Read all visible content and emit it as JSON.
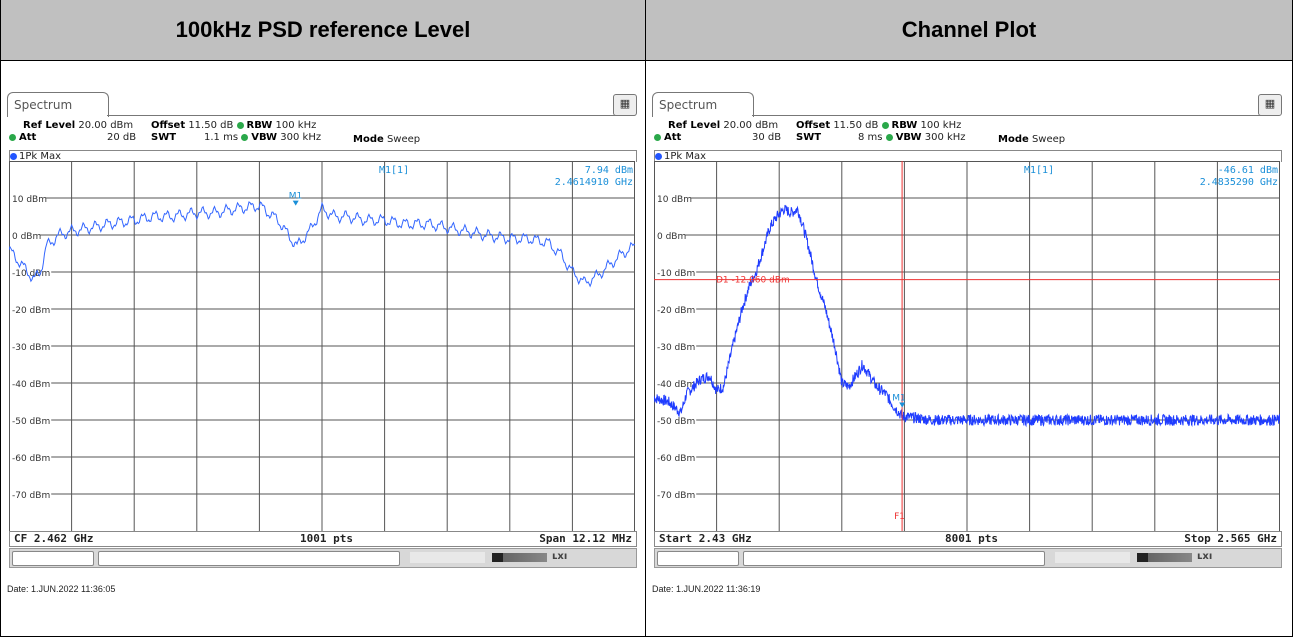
{
  "headers": {
    "left": "100kHz PSD reference Level",
    "right": "Channel Plot"
  },
  "common": {
    "tab_label": "Spectrum",
    "ref_level_label": "Ref Level",
    "ref_level_value": "20.00 dBm",
    "offset_label": "Offset",
    "offset_value": "11.50 dB",
    "rbw_label": "RBW",
    "rbw_value": "100 kHz",
    "att_label": "Att",
    "swt_label": "SWT",
    "vbw_label": "VBW",
    "vbw_value": "300 kHz",
    "mode_label": "Mode",
    "mode_value": "Sweep",
    "trace_label": "1Pk Max",
    "marker_label": "M1[1]",
    "marker_tag": "M1",
    "pts_left": "1001 pts",
    "pts_right": "8001 pts",
    "icon_corner": "display-config-icon"
  },
  "left": {
    "att_value": "20 dB",
    "swt_value": "1.1 ms",
    "marker_value": "7.94 dBm",
    "marker_freq": "2.4614910 GHz",
    "cf": "CF 2.462 GHz",
    "span": "Span 12.12 MHz",
    "date": "Date: 1.JUN.2022  11:36:05"
  },
  "right": {
    "att_value": "30 dB",
    "swt_value": "8 ms",
    "marker_value": "-46.61 dBm",
    "marker_freq": "2.4835290 GHz",
    "start": "Start 2.43 GHz",
    "stop": "Stop 2.565 GHz",
    "d1_label": "D1  -12.060 dBm",
    "f1_label": "F1",
    "date": "Date: 1.JUN.2022  11:36:19"
  },
  "chart_data": [
    {
      "type": "line",
      "title": "",
      "xlabel": "",
      "ylabel": "",
      "x_range_ghz": [
        2.45594,
        2.46806
      ],
      "ylim": [
        -80,
        20
      ],
      "y_ticks": [
        "10 dBm",
        "0 dBm",
        "-10 dBm",
        "-20 dBm",
        "-30 dBm",
        "-40 dBm",
        "-50 dBm",
        "-60 dBm",
        "-70 dBm"
      ],
      "grid": true,
      "series": [
        {
          "name": "1Pk Max",
          "x_frac": [
            0,
            0.02,
            0.04,
            0.05,
            0.06,
            0.08,
            0.1,
            0.13,
            0.16,
            0.2,
            0.23,
            0.26,
            0.3,
            0.33,
            0.36,
            0.4,
            0.43,
            0.45,
            0.46,
            0.47,
            0.48,
            0.49,
            0.5,
            0.51,
            0.52,
            0.54,
            0.57,
            0.6,
            0.63,
            0.67,
            0.7,
            0.73,
            0.76,
            0.8,
            0.83,
            0.86,
            0.88,
            0.9,
            0.92,
            0.94,
            0.96,
            0.98,
            1.0
          ],
          "values_dbm": [
            -4,
            -8,
            -12,
            -10,
            -3,
            0,
            1,
            2,
            3,
            4,
            5,
            5,
            6,
            6,
            7,
            7.94,
            4,
            -1,
            -3,
            -1,
            1,
            4,
            7,
            6,
            5,
            5,
            4,
            4,
            3,
            3,
            2,
            1,
            0,
            -1,
            -1,
            -2,
            -5,
            -10,
            -13,
            -11,
            -8,
            -5,
            -3
          ]
        }
      ],
      "markers": [
        {
          "name": "M1",
          "x_ghz": 2.461491,
          "y_dbm": 7.94
        }
      ]
    },
    {
      "type": "line",
      "title": "",
      "xlabel": "",
      "ylabel": "",
      "x_range_ghz": [
        2.43,
        2.565
      ],
      "ylim": [
        -80,
        20
      ],
      "y_ticks": [
        "10 dBm",
        "0 dBm",
        "-10 dBm",
        "-20 dBm",
        "-30 dBm",
        "-40 dBm",
        "-50 dBm",
        "-60 dBm",
        "-70 dBm"
      ],
      "grid": true,
      "series": [
        {
          "name": "1Pk Max",
          "x_ghz": [
            2.43,
            2.433,
            2.4358,
            2.437,
            2.44,
            2.442,
            2.4435,
            2.445,
            2.447,
            2.449,
            2.4505,
            2.452,
            2.4535,
            2.455,
            2.4565,
            2.458,
            2.4595,
            2.461,
            2.462,
            2.4635,
            2.465,
            2.467,
            2.469,
            2.4705,
            2.472,
            2.4735,
            2.475,
            2.476,
            2.478,
            2.48,
            2.4815,
            2.4835,
            2.49,
            2.5,
            2.51,
            2.52,
            2.53,
            2.54,
            2.55,
            2.565
          ],
          "values_dbm": [
            -44,
            -45,
            -48,
            -43,
            -39,
            -38,
            -42,
            -41,
            -30,
            -20,
            -14,
            -10,
            -4,
            2,
            5,
            7,
            6,
            7,
            3,
            -4,
            -12,
            -20,
            -30,
            -40,
            -41,
            -38,
            -35,
            -37,
            -41,
            -43,
            -46,
            -49,
            -50,
            -50,
            -50,
            -50,
            -50,
            -50,
            -50,
            -50
          ]
        }
      ],
      "markers": [
        {
          "name": "M1",
          "x_ghz": 2.483529,
          "y_dbm": -46.61
        }
      ],
      "display_line": {
        "name": "D1",
        "y_dbm": -12.06
      },
      "frequency_line": {
        "name": "F1",
        "x_ghz": 2.4835
      }
    }
  ]
}
